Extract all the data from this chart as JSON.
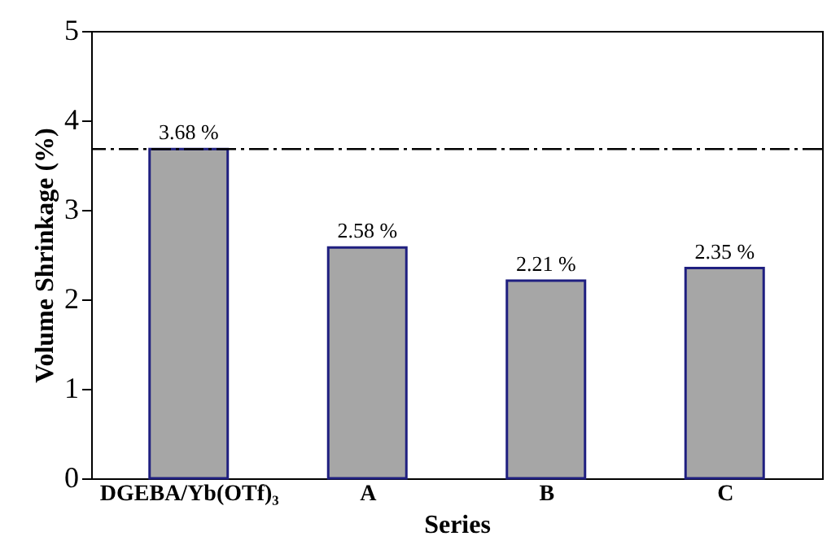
{
  "chart_data": {
    "type": "bar",
    "xlabel": "Series",
    "ylabel": "Volume Shrinkage (%)",
    "categories": [
      "DGEBA/Yb(OTf)₃",
      "A",
      "B",
      "C"
    ],
    "values": [
      3.68,
      2.58,
      2.21,
      2.35
    ],
    "value_labels": [
      "3.68 %",
      "2.58 %",
      "2.21 %",
      "2.35 %"
    ],
    "color": "#a6a6a6",
    "ylim": [
      0,
      5
    ],
    "yticks": [
      0,
      1,
      2,
      3,
      4,
      5
    ],
    "ref_lines": [
      {
        "axis": "y",
        "value": 3.68,
        "line_style": "dashed",
        "color": "#000000"
      }
    ],
    "grid": false
  }
}
